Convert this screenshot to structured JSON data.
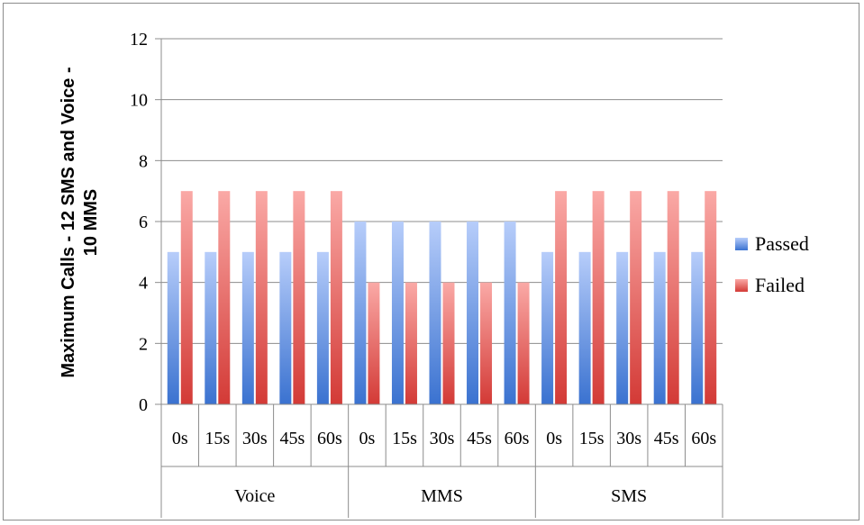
{
  "chart_data": {
    "type": "bar",
    "title": "",
    "ylabel": "Maximum Calls - 12 SMS and Voice - 10 MMS",
    "xlabel": "",
    "ylim": [
      0,
      12
    ],
    "yticks": [
      0,
      2,
      4,
      6,
      8,
      10,
      12
    ],
    "grid": true,
    "legend_position": "right",
    "groups": [
      {
        "label": "Voice",
        "categories": [
          "0s",
          "15s",
          "30s",
          "45s",
          "60s"
        ]
      },
      {
        "label": "MMS",
        "categories": [
          "0s",
          "15s",
          "30s",
          "45s",
          "60s"
        ]
      },
      {
        "label": "SMS",
        "categories": [
          "0s",
          "15s",
          "30s",
          "45s",
          "60s"
        ]
      }
    ],
    "categories": [
      "0s",
      "15s",
      "30s",
      "45s",
      "60s",
      "0s",
      "15s",
      "30s",
      "45s",
      "60s",
      "0s",
      "15s",
      "30s",
      "45s",
      "60s"
    ],
    "series": [
      {
        "name": "Passed",
        "color": "#4a7fd6",
        "values": [
          5,
          5,
          5,
          5,
          5,
          6,
          6,
          6,
          6,
          6,
          5,
          5,
          5,
          5,
          5
        ]
      },
      {
        "name": "Failed",
        "color": "#d9413f",
        "values": [
          7,
          7,
          7,
          7,
          7,
          4,
          4,
          4,
          4,
          4,
          7,
          7,
          7,
          7,
          7
        ]
      }
    ]
  }
}
